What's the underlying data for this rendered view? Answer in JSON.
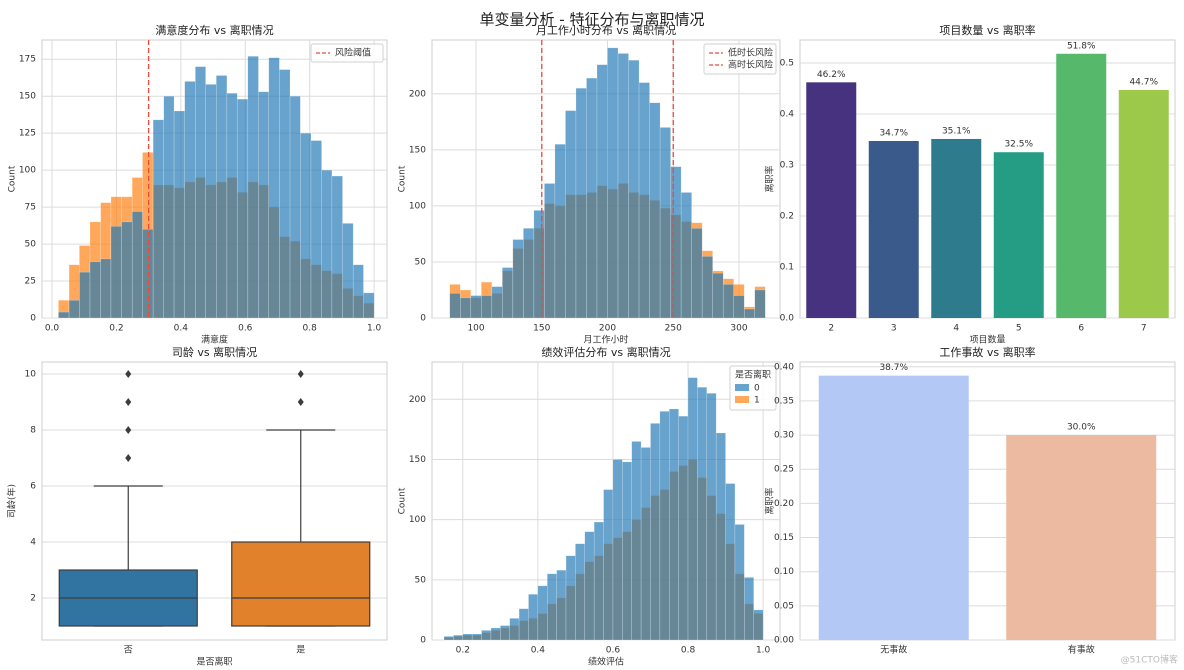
{
  "title": "单变量分析 - 特征分布与离职情况",
  "watermark": "@51CTO博客",
  "chart_data": [
    {
      "type": "histogram",
      "title": "满意度分布 vs 离职情况",
      "x_label": "满意度",
      "y_label": "Count",
      "bins": [
        0.02,
        0.053,
        0.085,
        0.118,
        0.151,
        0.183,
        0.216,
        0.249,
        0.281,
        0.314,
        0.347,
        0.379,
        0.412,
        0.445,
        0.477,
        0.51,
        0.543,
        0.575,
        0.608,
        0.641,
        0.673,
        0.706,
        0.739,
        0.771,
        0.804,
        0.837,
        0.869,
        0.902,
        0.935,
        0.967,
        1.0
      ],
      "series": [
        {
          "color": "#1f77b4",
          "values": [
            4,
            12,
            31,
            38,
            40,
            62,
            65,
            72,
            60,
            134,
            150,
            140,
            160,
            170,
            158,
            164,
            152,
            148,
            177,
            153,
            176,
            168,
            150,
            125,
            120,
            100,
            96,
            64,
            36,
            17
          ]
        },
        {
          "color": "#ff7f0e",
          "values": [
            12,
            36,
            49,
            65,
            78,
            82,
            82,
            95,
            112,
            90,
            90,
            88,
            92,
            95,
            90,
            92,
            95,
            85,
            92,
            90,
            75,
            55,
            52,
            40,
            36,
            32,
            30,
            20,
            15,
            10
          ]
        }
      ],
      "vlines": [
        {
          "x": 0.3,
          "label": "风险阈值",
          "color": "#e74c3c"
        }
      ],
      "xlim": [
        -0.031,
        1.04
      ],
      "xticks": [
        {
          "value": 0,
          "label": "0.0"
        },
        0.2,
        0.4,
        0.6,
        0.8,
        {
          "value": 1,
          "label": "1.0"
        }
      ],
      "ylim": [
        0,
        188
      ],
      "yticks": [
        0,
        25,
        50,
        75,
        100,
        125,
        150,
        175
      ],
      "grid": "both",
      "legend": "upper right"
    },
    {
      "type": "histogram",
      "title": "月工作小时分布 vs 离职情况",
      "x_label": "月工作小时",
      "y_label": "Count",
      "bins": [
        80,
        88,
        96,
        104,
        112,
        120,
        128,
        136,
        144,
        152,
        160,
        168,
        176,
        184,
        192,
        200,
        208,
        216,
        224,
        232,
        240,
        248,
        256,
        264,
        272,
        280,
        288,
        296,
        304,
        312,
        320
      ],
      "series": [
        {
          "color": "#1f77b4",
          "values": [
            22,
            18,
            20,
            20,
            28,
            45,
            70,
            80,
            96,
            120,
            155,
            185,
            205,
            214,
            226,
            241,
            236,
            230,
            210,
            192,
            170,
            135,
            112,
            80,
            55,
            40,
            30,
            20,
            8,
            25
          ]
        },
        {
          "color": "#ff7f0e",
          "values": [
            30,
            25,
            18,
            32,
            22,
            42,
            62,
            70,
            80,
            102,
            100,
            110,
            110,
            112,
            118,
            115,
            120,
            112,
            110,
            105,
            98,
            92,
            86,
            85,
            60,
            42,
            35,
            30,
            10,
            28
          ]
        }
      ],
      "vlines": [
        {
          "x": 150,
          "label": "低时长风险",
          "color": "#e74c3c"
        },
        {
          "x": 250,
          "label": "高时长风险",
          "color": "#e74c3c"
        }
      ],
      "xlim": [
        66.5,
        331.2
      ],
      "xticks": [
        100,
        150,
        200,
        250,
        300
      ],
      "ylim": [
        0,
        248
      ],
      "yticks": [
        0,
        50,
        100,
        150,
        200
      ],
      "grid": "both",
      "legend": "upper right"
    },
    {
      "type": "bar",
      "title": "项目数量 vs 离职率",
      "x_label": "项目数量",
      "y_label": "离职率",
      "categories": [
        "2",
        "3",
        "4",
        "5",
        "6",
        "7"
      ],
      "values": [
        0.462,
        0.347,
        0.351,
        0.325,
        0.518,
        0.447
      ],
      "value_labels": [
        "46.2%",
        "34.7%",
        "35.1%",
        "32.5%",
        "51.8%",
        "44.7%"
      ],
      "colors": [
        "#46327e",
        "#3b5a8c",
        "#2d7b8c",
        "#259d85",
        "#55b86a",
        "#9cc94a"
      ],
      "ylim": [
        0,
        0.545
      ],
      "yticks": [
        {
          "value": 0,
          "label": "0.0"
        },
        0.1,
        0.2,
        0.3,
        0.4,
        0.5
      ],
      "grid": "y"
    },
    {
      "type": "box",
      "title": "司龄 vs 离职情况",
      "x_label": "是否离职",
      "y_label": "司龄(年)",
      "categories": [
        "否",
        "是"
      ],
      "boxes": [
        {
          "low": 1,
          "q1": 1,
          "median": 2,
          "q3": 3,
          "high": 6,
          "outliers": [
            7,
            8,
            9,
            10
          ]
        },
        {
          "low": 1,
          "q1": 1,
          "median": 2,
          "q3": 4,
          "high": 8,
          "outliers": [
            9,
            10
          ]
        }
      ],
      "colors": [
        "#3274a1",
        "#e1812c"
      ],
      "ylim": [
        0.5,
        10.43
      ],
      "yticks": [
        2,
        4,
        6,
        8,
        10
      ],
      "grid": "y"
    },
    {
      "type": "histogram",
      "title": "绩效评估分布 vs 离职情况",
      "x_label": "绩效评估",
      "y_label": "Count",
      "bins": [
        0.15,
        0.175,
        0.2,
        0.225,
        0.25,
        0.275,
        0.3,
        0.325,
        0.35,
        0.375,
        0.4,
        0.425,
        0.45,
        0.475,
        0.5,
        0.525,
        0.55,
        0.575,
        0.6,
        0.625,
        0.65,
        0.675,
        0.7,
        0.725,
        0.75,
        0.775,
        0.8,
        0.825,
        0.85,
        0.875,
        0.9,
        0.925,
        0.95,
        0.975,
        1.0
      ],
      "series": [
        {
          "name": "0",
          "color": "#1f77b4",
          "values": [
            3,
            4,
            5,
            5,
            8,
            10,
            12,
            18,
            26,
            38,
            45,
            55,
            58,
            70,
            80,
            90,
            98,
            125,
            150,
            148,
            165,
            160,
            180,
            190,
            192,
            186,
            218,
            210,
            205,
            172,
            130,
            96,
            52,
            25
          ]
        },
        {
          "name": "1",
          "color": "#ff7f0e",
          "values": [
            2,
            3,
            4,
            4,
            6,
            8,
            10,
            12,
            16,
            18,
            22,
            30,
            35,
            45,
            55,
            65,
            70,
            80,
            85,
            90,
            100,
            110,
            120,
            125,
            140,
            145,
            150,
            135,
            120,
            105,
            80,
            55,
            30,
            22
          ]
        }
      ],
      "legend_title": "是否离职",
      "xlim": [
        0.118,
        1.045
      ],
      "xticks": [
        0.2,
        0.4,
        0.6,
        0.8,
        {
          "value": 1,
          "label": "1.0"
        }
      ],
      "ylim": [
        0,
        231
      ],
      "yticks": [
        0,
        50,
        100,
        150,
        200
      ],
      "grid": "both",
      "legend": "upper right"
    },
    {
      "type": "bar",
      "title": "工作事故 vs 离职率",
      "y_label": "离职率",
      "categories": [
        "无事故",
        "有事故"
      ],
      "values": [
        0.387,
        0.3
      ],
      "value_labels": [
        "38.7%",
        "30.0%"
      ],
      "colors": [
        "#b3c8f4",
        "#ecbaa1"
      ],
      "ylim": [
        0,
        0.407
      ],
      "yticks": [
        {
          "value": 0,
          "label": "0.00"
        },
        {
          "value": 0.05,
          "label": "0.05"
        },
        {
          "value": 0.1,
          "label": "0.10"
        },
        {
          "value": 0.15,
          "label": "0.15"
        },
        {
          "value": 0.2,
          "label": "0.20"
        },
        {
          "value": 0.25,
          "label": "0.25"
        },
        {
          "value": 0.3,
          "label": "0.30"
        },
        {
          "value": 0.35,
          "label": "0.35"
        },
        {
          "value": 0.4,
          "label": "0.40"
        }
      ],
      "grid": "y"
    }
  ]
}
